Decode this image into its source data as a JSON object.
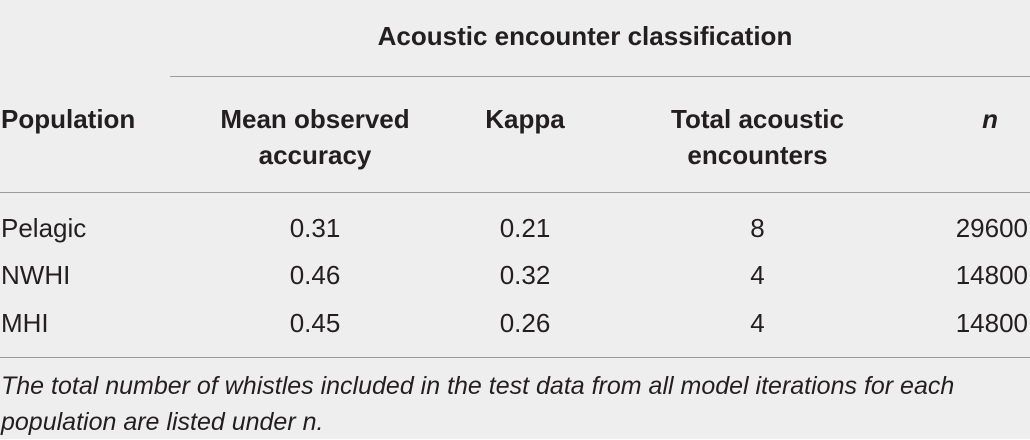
{
  "table": {
    "group_header": "Acoustic encounter classification",
    "columns": {
      "population": "Population",
      "accuracy_line1": "Mean observed",
      "accuracy_line2": "accuracy",
      "kappa": "Kappa",
      "total_line1": "Total acoustic",
      "total_line2": "encounters",
      "n": "n"
    },
    "rows": [
      {
        "population": "Pelagic",
        "accuracy": "0.31",
        "kappa": "0.21",
        "total": "8",
        "n": "29600"
      },
      {
        "population": "NWHI",
        "accuracy": "0.46",
        "kappa": "0.32",
        "total": "4",
        "n": "14800"
      },
      {
        "population": "MHI",
        "accuracy": "0.45",
        "kappa": "0.26",
        "total": "4",
        "n": "14800"
      }
    ],
    "footnote": "The total number of whistles included in the test data from all model iterations for each population are listed under n."
  }
}
